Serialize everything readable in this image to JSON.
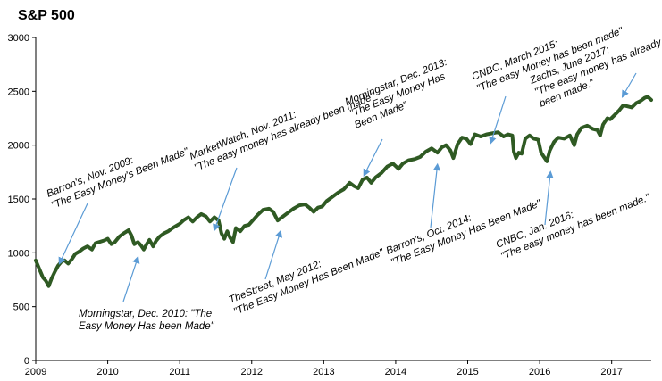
{
  "chart_data": {
    "type": "line",
    "title": "S&P 500",
    "xlabel": "",
    "ylabel": "",
    "xlim": [
      2009.0,
      2017.55
    ],
    "ylim": [
      0,
      3000
    ],
    "grid": false,
    "legend": "none",
    "line_color": "#2f5a23",
    "annotation_color": "#5b9bd5",
    "y_ticks": [
      0,
      500,
      1000,
      1500,
      2000,
      2500,
      3000
    ],
    "x_ticks": [
      {
        "value": 2009,
        "label": "2009"
      },
      {
        "value": 2010,
        "label": "2010"
      },
      {
        "value": 2011,
        "label": "2011"
      },
      {
        "value": 2012,
        "label": "2012"
      },
      {
        "value": 2013,
        "label": "2013"
      },
      {
        "value": 2014,
        "label": "2014"
      },
      {
        "value": 2015,
        "label": "2015"
      },
      {
        "value": 2016,
        "label": "2016"
      },
      {
        "value": 2017,
        "label": "2017"
      }
    ],
    "series": [
      {
        "values": [
          [
            2009.0,
            930
          ],
          [
            2009.05,
            850
          ],
          [
            2009.1,
            770
          ],
          [
            2009.14,
            740
          ],
          [
            2009.18,
            690
          ],
          [
            2009.22,
            760
          ],
          [
            2009.27,
            830
          ],
          [
            2009.31,
            880
          ],
          [
            2009.36,
            920
          ],
          [
            2009.4,
            930
          ],
          [
            2009.45,
            900
          ],
          [
            2009.5,
            940
          ],
          [
            2009.55,
            990
          ],
          [
            2009.6,
            1010
          ],
          [
            2009.66,
            1040
          ],
          [
            2009.72,
            1060
          ],
          [
            2009.78,
            1030
          ],
          [
            2009.83,
            1090
          ],
          [
            2009.88,
            1100
          ],
          [
            2009.95,
            1115
          ],
          [
            2010.0,
            1130
          ],
          [
            2010.05,
            1080
          ],
          [
            2010.1,
            1100
          ],
          [
            2010.16,
            1150
          ],
          [
            2010.22,
            1180
          ],
          [
            2010.29,
            1210
          ],
          [
            2010.33,
            1160
          ],
          [
            2010.37,
            1080
          ],
          [
            2010.42,
            1100
          ],
          [
            2010.46,
            1070
          ],
          [
            2010.5,
            1030
          ],
          [
            2010.54,
            1080
          ],
          [
            2010.58,
            1120
          ],
          [
            2010.63,
            1060
          ],
          [
            2010.67,
            1110
          ],
          [
            2010.72,
            1150
          ],
          [
            2010.78,
            1180
          ],
          [
            2010.84,
            1200
          ],
          [
            2010.9,
            1230
          ],
          [
            2010.95,
            1250
          ],
          [
            2011.0,
            1270
          ],
          [
            2011.05,
            1300
          ],
          [
            2011.12,
            1330
          ],
          [
            2011.18,
            1290
          ],
          [
            2011.24,
            1330
          ],
          [
            2011.3,
            1360
          ],
          [
            2011.36,
            1340
          ],
          [
            2011.42,
            1290
          ],
          [
            2011.48,
            1330
          ],
          [
            2011.54,
            1300
          ],
          [
            2011.58,
            1180
          ],
          [
            2011.62,
            1130
          ],
          [
            2011.66,
            1200
          ],
          [
            2011.7,
            1140
          ],
          [
            2011.74,
            1100
          ],
          [
            2011.78,
            1230
          ],
          [
            2011.84,
            1200
          ],
          [
            2011.9,
            1250
          ],
          [
            2011.96,
            1260
          ],
          [
            2012.0,
            1290
          ],
          [
            2012.08,
            1350
          ],
          [
            2012.16,
            1400
          ],
          [
            2012.24,
            1410
          ],
          [
            2012.3,
            1380
          ],
          [
            2012.36,
            1300
          ],
          [
            2012.42,
            1330
          ],
          [
            2012.5,
            1370
          ],
          [
            2012.58,
            1410
          ],
          [
            2012.66,
            1440
          ],
          [
            2012.74,
            1450
          ],
          [
            2012.8,
            1420
          ],
          [
            2012.86,
            1380
          ],
          [
            2012.92,
            1420
          ],
          [
            2012.98,
            1430
          ],
          [
            2013.04,
            1480
          ],
          [
            2013.12,
            1520
          ],
          [
            2013.2,
            1560
          ],
          [
            2013.28,
            1590
          ],
          [
            2013.36,
            1650
          ],
          [
            2013.42,
            1620
          ],
          [
            2013.48,
            1600
          ],
          [
            2013.54,
            1680
          ],
          [
            2013.6,
            1700
          ],
          [
            2013.66,
            1650
          ],
          [
            2013.72,
            1700
          ],
          [
            2013.8,
            1740
          ],
          [
            2013.88,
            1800
          ],
          [
            2013.96,
            1830
          ],
          [
            2014.04,
            1780
          ],
          [
            2014.1,
            1830
          ],
          [
            2014.18,
            1860
          ],
          [
            2014.26,
            1870
          ],
          [
            2014.34,
            1890
          ],
          [
            2014.42,
            1940
          ],
          [
            2014.5,
            1970
          ],
          [
            2014.58,
            1930
          ],
          [
            2014.64,
            1980
          ],
          [
            2014.7,
            2000
          ],
          [
            2014.76,
            1950
          ],
          [
            2014.8,
            1880
          ],
          [
            2014.86,
            2010
          ],
          [
            2014.92,
            2070
          ],
          [
            2014.98,
            2060
          ],
          [
            2015.04,
            2010
          ],
          [
            2015.1,
            2100
          ],
          [
            2015.18,
            2080
          ],
          [
            2015.26,
            2100
          ],
          [
            2015.34,
            2110
          ],
          [
            2015.42,
            2120
          ],
          [
            2015.5,
            2080
          ],
          [
            2015.56,
            2100
          ],
          [
            2015.62,
            2090
          ],
          [
            2015.64,
            1940
          ],
          [
            2015.67,
            1880
          ],
          [
            2015.71,
            1930
          ],
          [
            2015.75,
            1920
          ],
          [
            2015.8,
            2060
          ],
          [
            2015.86,
            2090
          ],
          [
            2015.92,
            2060
          ],
          [
            2015.98,
            2050
          ],
          [
            2016.02,
            1930
          ],
          [
            2016.06,
            1890
          ],
          [
            2016.1,
            1850
          ],
          [
            2016.14,
            1950
          ],
          [
            2016.2,
            2030
          ],
          [
            2016.26,
            2070
          ],
          [
            2016.34,
            2060
          ],
          [
            2016.42,
            2090
          ],
          [
            2016.48,
            2000
          ],
          [
            2016.52,
            2100
          ],
          [
            2016.58,
            2160
          ],
          [
            2016.66,
            2180
          ],
          [
            2016.74,
            2150
          ],
          [
            2016.8,
            2140
          ],
          [
            2016.84,
            2090
          ],
          [
            2016.88,
            2190
          ],
          [
            2016.94,
            2250
          ],
          [
            2016.98,
            2240
          ],
          [
            2017.04,
            2280
          ],
          [
            2017.1,
            2320
          ],
          [
            2017.16,
            2370
          ],
          [
            2017.22,
            2360
          ],
          [
            2017.28,
            2350
          ],
          [
            2017.34,
            2390
          ],
          [
            2017.4,
            2410
          ],
          [
            2017.46,
            2440
          ],
          [
            2017.5,
            2450
          ],
          [
            2017.55,
            2420
          ]
        ]
      }
    ],
    "annotations": [
      {
        "id": "barrons-2009",
        "lines": [
          "Barron's, Nov. 2009:",
          "\"The Easy Money's Been Made\""
        ],
        "target": [
          2009.33,
          900
        ]
      },
      {
        "id": "morningstar-2010",
        "lines": [
          "Morningstar, Dec. 2010: \"The",
          "Easy Money Has been Made\""
        ],
        "target": [
          2010.42,
          960
        ]
      },
      {
        "id": "marketwatch-2011",
        "lines": [
          "MarketWatch, Nov. 2011:",
          "\"The easy money has already been made\""
        ],
        "target": [
          2011.48,
          1210
        ]
      },
      {
        "id": "thestreet-2012",
        "lines": [
          "TheStreet, May 2012:",
          "\"The Easy Money Has Been Made\""
        ],
        "target": [
          2012.4,
          1200
        ]
      },
      {
        "id": "morningstar-2013",
        "lines": [
          "Morningstar, Dec. 2013:",
          "\"The Easy Money Has",
          "Been Made\""
        ],
        "target": [
          2013.56,
          1720
        ]
      },
      {
        "id": "barrons-2014",
        "lines": [
          "Barron's, Oct. 2014:",
          "\"The Easy Money Has Been Made\""
        ],
        "target": [
          2014.58,
          1820
        ]
      },
      {
        "id": "cnbc-2015",
        "lines": [
          "CNBC, March 2015:",
          "\"The easy Money has been made\""
        ],
        "target": [
          2015.32,
          2020
        ]
      },
      {
        "id": "cnbc-2016",
        "lines": [
          "CNBC, Jan. 2016:",
          "\"The easy money has been made.\""
        ],
        "target": [
          2016.15,
          1750
        ]
      },
      {
        "id": "zachs-2017",
        "lines": [
          "Zachs, June 2017:",
          "\"The easy money has already",
          "been made.\""
        ],
        "target": [
          2017.15,
          2450
        ]
      }
    ]
  }
}
